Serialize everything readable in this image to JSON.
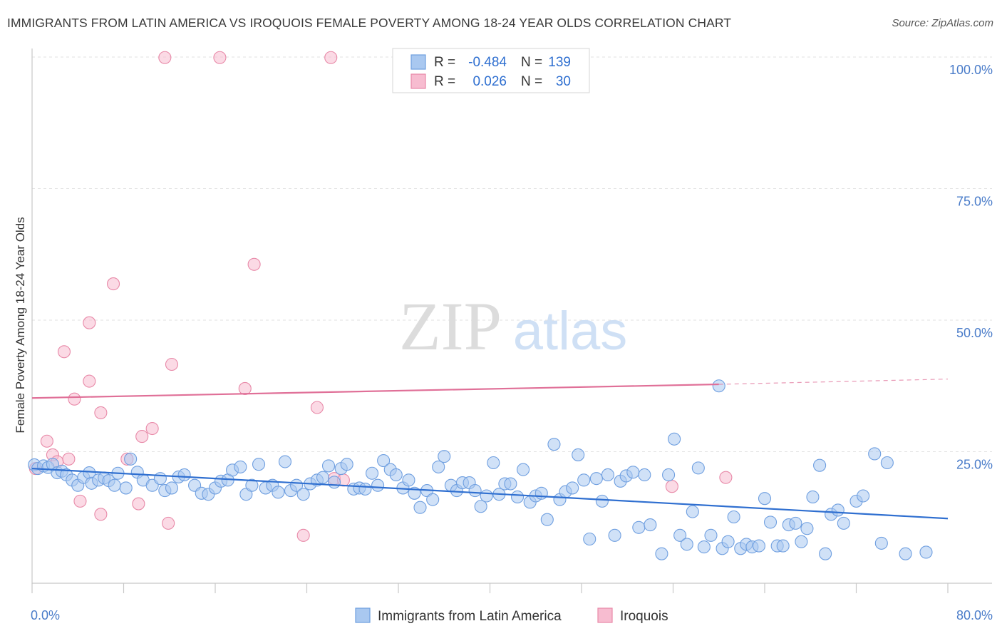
{
  "title": "IMMIGRANTS FROM LATIN AMERICA VS IROQUOIS FEMALE POVERTY AMONG 18-24 YEAR OLDS CORRELATION CHART",
  "source": "Source: ZipAtlas.com",
  "watermark": {
    "zip": "ZIP",
    "atlas": "atlas"
  },
  "legend": {
    "rows": [
      {
        "r_label": "R =",
        "r_value": "-0.484",
        "n_label": "N =",
        "n_value": "139",
        "color": "#a9c8f0",
        "stroke": "#6f9fe0"
      },
      {
        "r_label": "R =",
        "r_value": "0.026",
        "n_label": "N =",
        "n_value": "30",
        "color": "#f7bcd0",
        "stroke": "#e889a8"
      }
    ]
  },
  "chart_data": {
    "type": "scatter",
    "xlabel": "",
    "ylabel": "Female Poverty Among 18-24 Year Olds",
    "xlim": [
      0,
      80
    ],
    "ylim": [
      0,
      100
    ],
    "x_tick_labels": [
      "0.0%",
      "80.0%"
    ],
    "y_tick_labels": [
      {
        "value": 100,
        "label": "100.0%"
      },
      {
        "value": 75,
        "label": "75.0%"
      },
      {
        "value": 50,
        "label": "50.0%"
      },
      {
        "value": 25,
        "label": "25.0%"
      }
    ],
    "grid": "horizontal dashed",
    "legend_position": "top-center",
    "series": [
      {
        "name": "Immigrants from Latin America",
        "color": "#a9c8f0",
        "stroke": "#6f9fe0",
        "trend": {
          "x": [
            0,
            80
          ],
          "y": [
            21.8,
            12.3
          ],
          "color": "#2f6fd0"
        },
        "points": [
          [
            0.2,
            22.5
          ],
          [
            0.5,
            21.8
          ],
          [
            1.0,
            22.3
          ],
          [
            1.4,
            22.0
          ],
          [
            1.8,
            22.6
          ],
          [
            2.2,
            21.0
          ],
          [
            2.6,
            21.3
          ],
          [
            3.0,
            20.6
          ],
          [
            3.5,
            19.6
          ],
          [
            4.0,
            18.6
          ],
          [
            4.5,
            20.1
          ],
          [
            5.0,
            21.0
          ],
          [
            5.2,
            19.0
          ],
          [
            5.8,
            19.6
          ],
          [
            6.3,
            20.0
          ],
          [
            6.7,
            19.5
          ],
          [
            7.2,
            18.6
          ],
          [
            7.5,
            20.9
          ],
          [
            8.2,
            18.1
          ],
          [
            8.6,
            23.6
          ],
          [
            9.2,
            21.1
          ],
          [
            9.7,
            19.6
          ],
          [
            10.5,
            18.6
          ],
          [
            11.2,
            19.9
          ],
          [
            11.6,
            17.6
          ],
          [
            12.2,
            18.1
          ],
          [
            12.8,
            20.2
          ],
          [
            13.3,
            20.6
          ],
          [
            14.2,
            18.6
          ],
          [
            14.8,
            17.1
          ],
          [
            15.4,
            16.9
          ],
          [
            16.0,
            18.1
          ],
          [
            16.5,
            19.4
          ],
          [
            17.1,
            19.6
          ],
          [
            17.5,
            21.5
          ],
          [
            18.2,
            22.1
          ],
          [
            18.7,
            16.9
          ],
          [
            19.2,
            18.6
          ],
          [
            19.8,
            22.6
          ],
          [
            20.4,
            18.1
          ],
          [
            21.0,
            18.6
          ],
          [
            21.5,
            17.3
          ],
          [
            22.1,
            23.1
          ],
          [
            22.6,
            17.6
          ],
          [
            23.1,
            18.6
          ],
          [
            23.7,
            16.9
          ],
          [
            24.3,
            18.9
          ],
          [
            24.9,
            19.6
          ],
          [
            25.4,
            20.1
          ],
          [
            25.9,
            22.3
          ],
          [
            26.4,
            19.2
          ],
          [
            27.0,
            21.8
          ],
          [
            27.5,
            22.6
          ],
          [
            28.1,
            17.9
          ],
          [
            28.6,
            18.1
          ],
          [
            29.1,
            17.9
          ],
          [
            29.7,
            20.9
          ],
          [
            30.2,
            18.6
          ],
          [
            30.7,
            23.3
          ],
          [
            31.3,
            21.6
          ],
          [
            31.8,
            20.6
          ],
          [
            32.4,
            18.1
          ],
          [
            32.9,
            19.6
          ],
          [
            33.4,
            17.1
          ],
          [
            33.9,
            14.4
          ],
          [
            34.5,
            17.6
          ],
          [
            35.0,
            15.9
          ],
          [
            35.5,
            22.1
          ],
          [
            36.0,
            24.1
          ],
          [
            36.6,
            18.6
          ],
          [
            37.1,
            17.6
          ],
          [
            37.6,
            19.1
          ],
          [
            38.2,
            19.1
          ],
          [
            38.7,
            17.6
          ],
          [
            39.2,
            14.6
          ],
          [
            39.7,
            16.6
          ],
          [
            40.3,
            22.9
          ],
          [
            40.8,
            16.9
          ],
          [
            41.3,
            18.9
          ],
          [
            41.8,
            18.9
          ],
          [
            42.4,
            16.4
          ],
          [
            42.9,
            21.6
          ],
          [
            43.5,
            15.4
          ],
          [
            44.0,
            16.6
          ],
          [
            44.5,
            17.1
          ],
          [
            45.0,
            12.1
          ],
          [
            45.6,
            26.4
          ],
          [
            46.1,
            15.9
          ],
          [
            46.6,
            17.4
          ],
          [
            47.2,
            18.1
          ],
          [
            47.7,
            24.4
          ],
          [
            48.2,
            19.6
          ],
          [
            48.7,
            8.4
          ],
          [
            49.3,
            19.9
          ],
          [
            49.8,
            15.6
          ],
          [
            50.3,
            20.6
          ],
          [
            50.9,
            9.1
          ],
          [
            51.4,
            19.4
          ],
          [
            51.9,
            20.4
          ],
          [
            52.5,
            21.1
          ],
          [
            53.0,
            10.6
          ],
          [
            53.5,
            20.6
          ],
          [
            54.0,
            11.1
          ],
          [
            55.0,
            5.6
          ],
          [
            55.6,
            20.6
          ],
          [
            56.1,
            27.4
          ],
          [
            56.6,
            9.1
          ],
          [
            57.2,
            7.4
          ],
          [
            57.7,
            13.6
          ],
          [
            58.2,
            21.9
          ],
          [
            58.7,
            6.9
          ],
          [
            59.3,
            9.1
          ],
          [
            60.0,
            37.5
          ],
          [
            60.3,
            6.6
          ],
          [
            60.8,
            7.9
          ],
          [
            61.3,
            12.6
          ],
          [
            61.9,
            6.6
          ],
          [
            62.4,
            7.4
          ],
          [
            62.9,
            6.9
          ],
          [
            63.5,
            7.1
          ],
          [
            64.0,
            16.1
          ],
          [
            64.5,
            11.6
          ],
          [
            65.1,
            7.1
          ],
          [
            65.6,
            7.1
          ],
          [
            66.1,
            11.1
          ],
          [
            66.7,
            11.4
          ],
          [
            67.2,
            7.9
          ],
          [
            67.7,
            10.4
          ],
          [
            68.2,
            16.4
          ],
          [
            68.8,
            22.4
          ],
          [
            69.3,
            5.6
          ],
          [
            69.8,
            13.1
          ],
          [
            70.4,
            13.9
          ],
          [
            70.9,
            11.4
          ],
          [
            72.0,
            15.6
          ],
          [
            72.6,
            16.6
          ],
          [
            73.6,
            24.6
          ],
          [
            74.2,
            7.6
          ],
          [
            74.7,
            22.9
          ],
          [
            76.3,
            5.6
          ],
          [
            78.1,
            5.9
          ]
        ]
      },
      {
        "name": "Iroquois",
        "color": "#f7bcd0",
        "stroke": "#e889a8",
        "trend": {
          "x": [
            0,
            60
          ],
          "y": [
            35.2,
            37.8
          ],
          "dash_to_x": 80,
          "dash_to_y": 38.8,
          "color": "#e07098"
        },
        "points": [
          [
            0.3,
            21.8
          ],
          [
            1.3,
            27.0
          ],
          [
            1.8,
            24.4
          ],
          [
            2.2,
            23.1
          ],
          [
            2.8,
            44.0
          ],
          [
            3.2,
            23.6
          ],
          [
            3.7,
            35.0
          ],
          [
            4.2,
            15.6
          ],
          [
            5.0,
            49.5
          ],
          [
            5.0,
            38.4
          ],
          [
            6.0,
            32.4
          ],
          [
            6.0,
            13.1
          ],
          [
            7.1,
            56.9
          ],
          [
            8.3,
            23.6
          ],
          [
            9.3,
            15.1
          ],
          [
            9.6,
            27.9
          ],
          [
            10.5,
            29.4
          ],
          [
            11.6,
            99.9
          ],
          [
            11.9,
            11.4
          ],
          [
            12.2,
            41.6
          ],
          [
            16.4,
            99.9
          ],
          [
            18.6,
            37.0
          ],
          [
            19.4,
            60.6
          ],
          [
            23.7,
            9.1
          ],
          [
            24.9,
            33.4
          ],
          [
            26.1,
            99.9
          ],
          [
            26.4,
            19.9
          ],
          [
            27.2,
            19.6
          ],
          [
            55.9,
            18.4
          ],
          [
            60.6,
            20.1
          ]
        ]
      }
    ]
  }
}
